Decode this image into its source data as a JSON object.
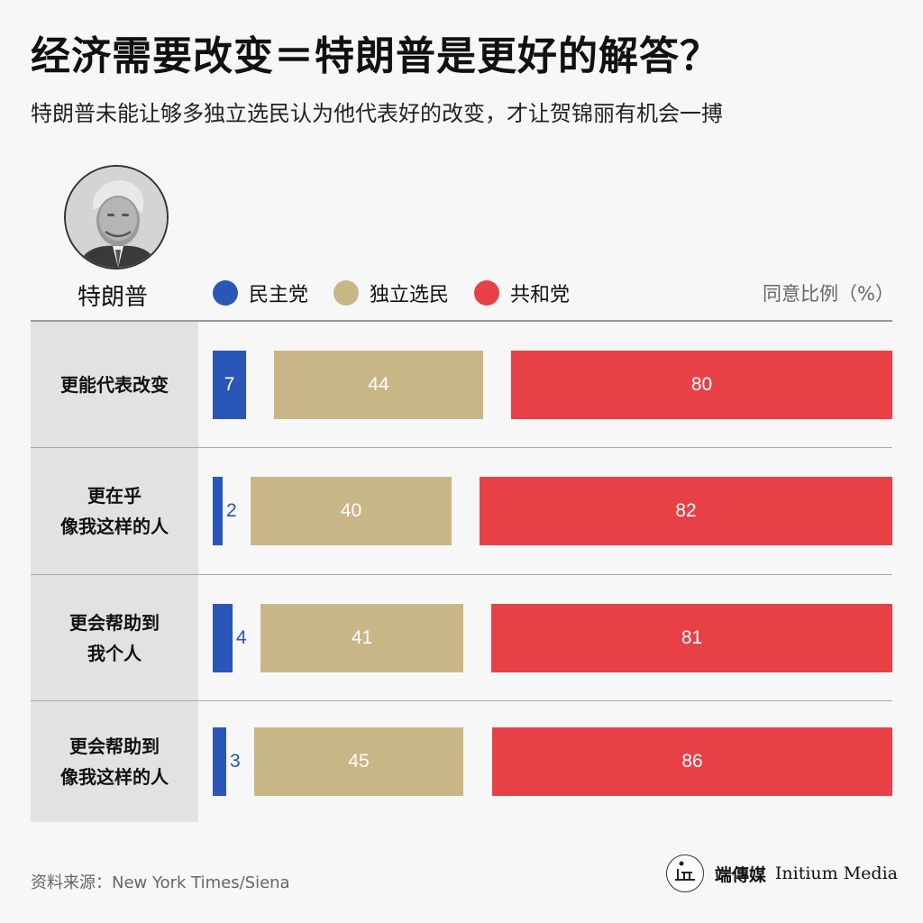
{
  "header": {
    "title": "经济需要改变＝特朗普是更好的解答？",
    "subtitle": "特朗普未能让够多独立选民认为他代表好的改变，才让贺锦丽有机会一搏"
  },
  "person": {
    "name": "特朗普",
    "photo_icon": "portrait-photo"
  },
  "legend": [
    {
      "label": "民主党",
      "color": "#2a56b8"
    },
    {
      "label": "独立选民",
      "color": "#c9b687"
    },
    {
      "label": "共和党",
      "color": "#e84047"
    }
  ],
  "unit_label": "同意比例（%）",
  "chart_data": {
    "type": "bar",
    "categories": [
      "更能代表改变",
      "更在乎\n像我这样的人",
      "更会帮助到\n我个人",
      "更会帮助到\n像我这样的人"
    ],
    "series": [
      {
        "name": "民主党",
        "values": [
          7,
          2,
          4,
          3
        ]
      },
      {
        "name": "独立选民",
        "values": [
          44,
          40,
          41,
          45
        ]
      },
      {
        "name": "共和党",
        "values": [
          80,
          82,
          81,
          86
        ]
      }
    ],
    "ylabel": "同意比例（%）"
  },
  "footer": {
    "source": "资料来源：New York Times/Siena",
    "brand_cn": "端傳媒",
    "brand_en": "Initium Media"
  }
}
